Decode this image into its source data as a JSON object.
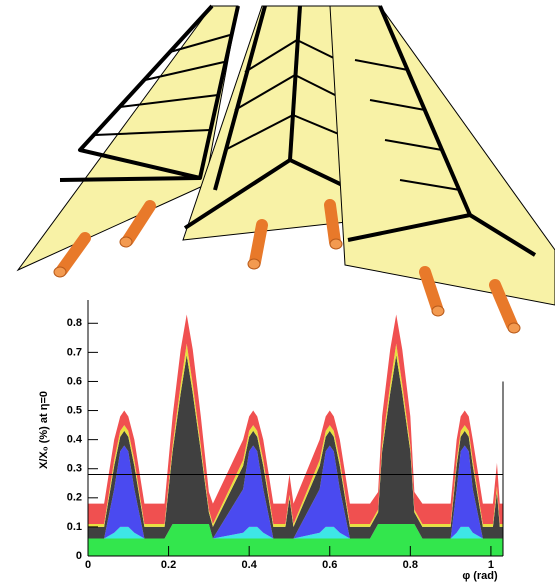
{
  "chart_data": {
    "type": "stacked_area",
    "xlabel": "φ (rad)",
    "ylabel": "X/X₀ (%) at η=0",
    "xlim": [
      0,
      1.03
    ],
    "ylim": [
      0,
      0.88
    ],
    "xticks": [
      0,
      0.2,
      0.4,
      0.6,
      0.8,
      1
    ],
    "yticks": [
      0,
      0.1,
      0.2,
      0.3,
      0.4,
      0.5,
      0.6,
      0.7,
      0.8
    ],
    "hlines": [
      0.28
    ],
    "x": [
      0,
      0.04,
      0.065,
      0.08,
      0.09,
      0.1,
      0.115,
      0.14,
      0.19,
      0.21,
      0.23,
      0.245,
      0.26,
      0.28,
      0.3,
      0.31,
      0.385,
      0.4,
      0.41,
      0.42,
      0.435,
      0.46,
      0.49,
      0.5,
      0.51,
      0.575,
      0.59,
      0.6,
      0.61,
      0.625,
      0.65,
      0.7,
      0.72,
      0.73,
      0.75,
      0.765,
      0.78,
      0.8,
      0.81,
      0.83,
      0.9,
      0.915,
      0.925,
      0.935,
      0.945,
      0.955,
      0.98,
      1.005,
      1.015,
      1.022,
      1.03
    ],
    "series": [
      {
        "color": "#33e64d",
        "values": [
          0.06,
          0.06,
          0.06,
          0.06,
          0.06,
          0.06,
          0.06,
          0.06,
          0.06,
          0.11,
          0.11,
          0.11,
          0.11,
          0.11,
          0.11,
          0.06,
          0.06,
          0.06,
          0.06,
          0.06,
          0.06,
          0.06,
          0.06,
          0.06,
          0.06,
          0.06,
          0.06,
          0.06,
          0.06,
          0.06,
          0.06,
          0.06,
          0.11,
          0.11,
          0.11,
          0.11,
          0.11,
          0.11,
          0.11,
          0.06,
          0.06,
          0.06,
          0.06,
          0.06,
          0.06,
          0.06,
          0.06,
          0.06,
          0.06,
          0.06,
          0.06
        ]
      },
      {
        "color": "#3ee6e6",
        "values": [
          0,
          0,
          0.02,
          0.04,
          0.04,
          0.04,
          0.02,
          0,
          0,
          0,
          0,
          0,
          0,
          0,
          0,
          0,
          0.02,
          0.04,
          0.04,
          0.04,
          0.02,
          0,
          0,
          0,
          0,
          0.02,
          0.04,
          0.04,
          0.04,
          0.02,
          0,
          0,
          0,
          0,
          0,
          0,
          0,
          0,
          0,
          0,
          0,
          0.02,
          0.04,
          0.04,
          0.04,
          0.02,
          0,
          0,
          0,
          0,
          0
        ]
      },
      {
        "color": "#4a4af0",
        "values": [
          0,
          0,
          0.15,
          0.26,
          0.28,
          0.26,
          0.15,
          0,
          0,
          0,
          0,
          0,
          0,
          0,
          0,
          0,
          0.15,
          0.26,
          0.28,
          0.26,
          0.15,
          0,
          0,
          0,
          0,
          0.15,
          0.26,
          0.28,
          0.26,
          0.15,
          0,
          0,
          0,
          0,
          0,
          0,
          0,
          0,
          0,
          0,
          0,
          0.15,
          0.26,
          0.28,
          0.26,
          0.15,
          0,
          0,
          0,
          0,
          0
        ]
      },
      {
        "color": "#404040",
        "values": [
          0.04,
          0.04,
          0.08,
          0.05,
          0.05,
          0.05,
          0.08,
          0.04,
          0.04,
          0.25,
          0.45,
          0.58,
          0.45,
          0.25,
          0.04,
          0.04,
          0.08,
          0.05,
          0.05,
          0.05,
          0.08,
          0.04,
          0.04,
          0.14,
          0.04,
          0.08,
          0.05,
          0.05,
          0.05,
          0.08,
          0.04,
          0.04,
          0.04,
          0.25,
          0.45,
          0.58,
          0.45,
          0.25,
          0.04,
          0.04,
          0.04,
          0.08,
          0.05,
          0.05,
          0.05,
          0.08,
          0.04,
          0.04,
          0.16,
          0.04,
          0.04
        ]
      },
      {
        "color": "#e8e040",
        "values": [
          0.01,
          0.01,
          0.02,
          0.02,
          0.02,
          0.02,
          0.02,
          0.01,
          0.01,
          0.02,
          0.03,
          0.04,
          0.03,
          0.02,
          0.01,
          0.01,
          0.02,
          0.02,
          0.02,
          0.02,
          0.02,
          0.01,
          0.01,
          0.01,
          0.01,
          0.02,
          0.02,
          0.02,
          0.02,
          0.02,
          0.01,
          0.01,
          0.01,
          0.02,
          0.03,
          0.04,
          0.03,
          0.02,
          0.01,
          0.01,
          0.01,
          0.02,
          0.02,
          0.02,
          0.02,
          0.02,
          0.01,
          0.01,
          0.02,
          0.01,
          0.01
        ]
      },
      {
        "color": "#f05050",
        "values": [
          0.07,
          0.07,
          0.07,
          0.05,
          0.05,
          0.05,
          0.07,
          0.07,
          0.07,
          0.1,
          0.12,
          0.1,
          0.12,
          0.1,
          0.06,
          0.07,
          0.07,
          0.05,
          0.05,
          0.05,
          0.07,
          0.07,
          0.07,
          0.07,
          0.07,
          0.07,
          0.05,
          0.05,
          0.05,
          0.07,
          0.07,
          0.07,
          0.06,
          0.1,
          0.12,
          0.1,
          0.12,
          0.1,
          0.06,
          0.07,
          0.07,
          0.07,
          0.05,
          0.05,
          0.05,
          0.07,
          0.07,
          0.07,
          0.08,
          0.07,
          0.07
        ]
      }
    ]
  }
}
